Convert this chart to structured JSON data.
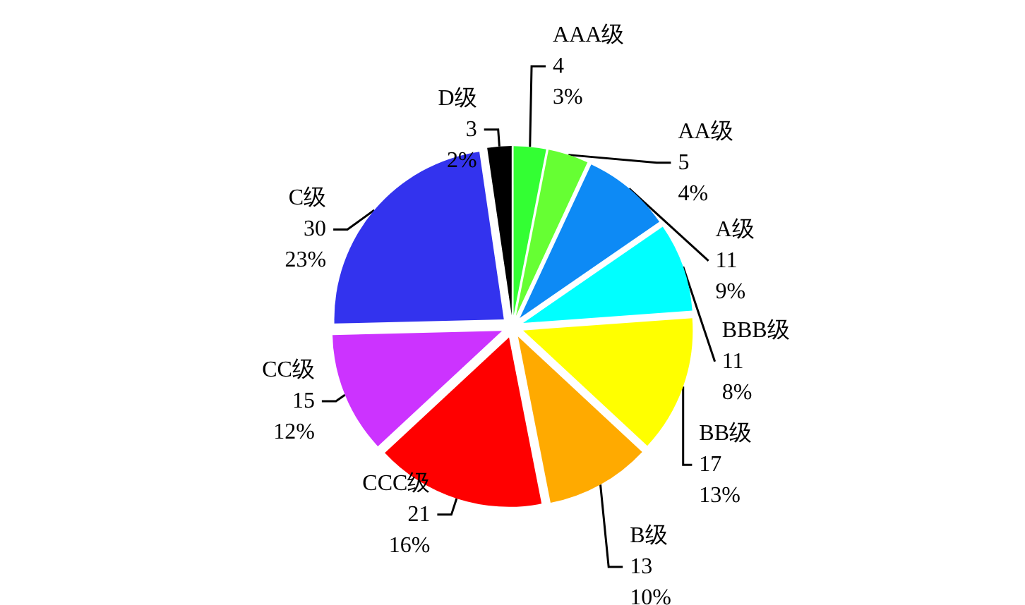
{
  "chart_data": {
    "type": "pie",
    "categories": [
      "AAA级",
      "AA级",
      "A级",
      "BBB级",
      "BB级",
      "B级",
      "CCC级",
      "CC级",
      "C级",
      "D级"
    ],
    "values": [
      4,
      5,
      11,
      11,
      17,
      13,
      21,
      15,
      30,
      3
    ],
    "value_labels": [
      "4\n3%",
      "5\n4%",
      "11\n9%",
      "11\n8%",
      "17\n13%",
      "13\n10%",
      "21\n16%",
      "15\n12%",
      "30\n23%",
      "3\n2%"
    ],
    "colors": [
      "#33ff33",
      "#66ff33",
      "#0d8af5",
      "#00ffff",
      "#ffff00",
      "#ffaa00",
      "#ff0000",
      "#cc33ff",
      "#3333ee",
      "#000000"
    ]
  }
}
